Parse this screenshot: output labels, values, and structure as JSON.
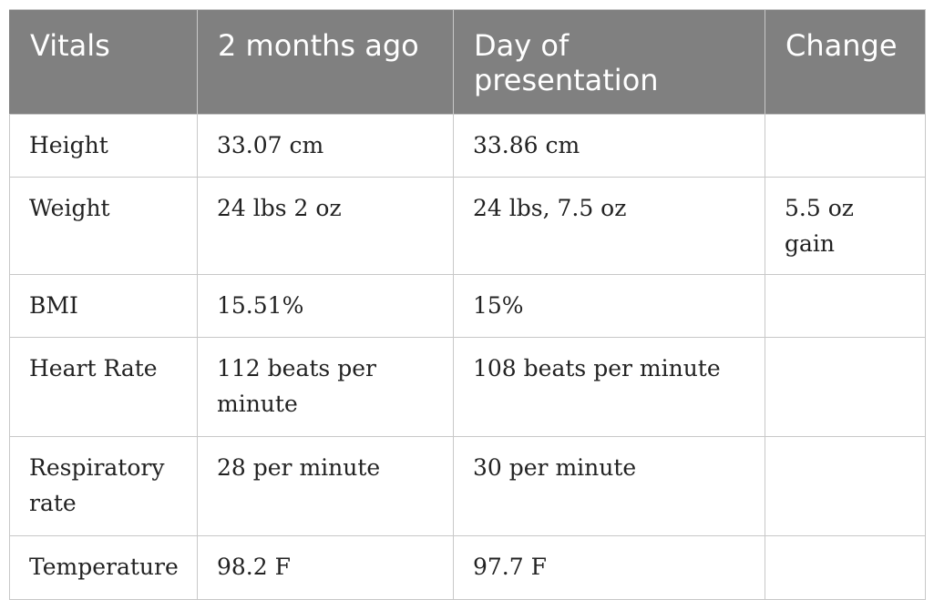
{
  "table": {
    "headers": [
      "Vitals",
      "2 months ago",
      "Day of presentation",
      "Change"
    ],
    "rows": [
      [
        "Height",
        "33.07 cm",
        "33.86 cm",
        ""
      ],
      [
        "Weight",
        "24 lbs 2 oz",
        "24 lbs, 7.5 oz",
        "5.5 oz gain"
      ],
      [
        "BMI",
        "15.51%",
        "15%",
        ""
      ],
      [
        "Heart Rate",
        "112 beats per minute",
        "108 beats per minute",
        ""
      ],
      [
        "Respiratory rate",
        "28 per minute",
        "30 per minute",
        ""
      ],
      [
        "Temperature",
        "98.2 F",
        "97.7 F",
        ""
      ]
    ]
  },
  "colors": {
    "header_bg": "#808080",
    "header_text": "#ffffff",
    "grid": "#c8c8c8"
  }
}
